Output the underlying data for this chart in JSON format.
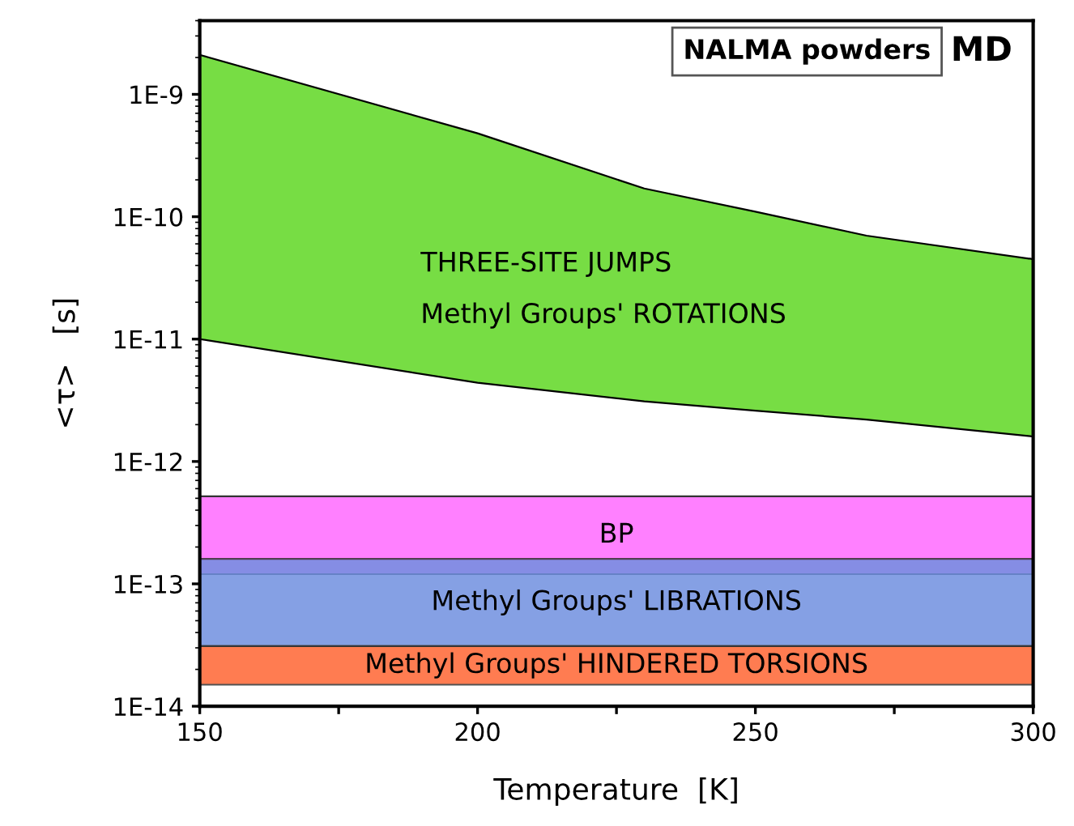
{
  "chart_data": {
    "type": "area",
    "xlabel": "Temperature  [K]",
    "ylabel": "<τ>   [s]",
    "x": [
      150,
      200,
      230,
      250,
      270,
      300
    ],
    "series": [
      {
        "color": "#ffffff",
        "values": [
          1e-11,
          4.4e-12,
          3.1e-12,
          2.6e-12,
          2.2e-12,
          1.6e-12
        ]
      },
      {
        "color": "#77dd44",
        "values": [
          2.09e-09,
          4.756e-10,
          1.669e-10,
          1.074e-10,
          6.78e-11,
          4.34e-11
        ]
      }
    ],
    "bands": [
      {
        "axis": "y",
        "from": 1.2e-13,
        "to": 5.2e-13,
        "label": "BP",
        "color": "#ff80ff"
      },
      {
        "axis": "y",
        "from": 3.1e-14,
        "to": 1.6e-13,
        "label": "Methyl Groups' LIBRATIONS",
        "color": "#7090e0"
      },
      {
        "axis": "y",
        "from": 1.5e-14,
        "to": 3.1e-14,
        "label": "Methyl Groups' HINDERED TORSIONS",
        "color": "#ff6633"
      }
    ],
    "annotations": [
      "THREE-SITE JUMPS",
      "Methyl Groups' ROTATIONS",
      "NALMA powders",
      "MD"
    ],
    "stacked": true,
    "log": "y",
    "xlim": [
      150,
      300
    ],
    "ylim": [
      1e-14,
      4e-09
    ],
    "xticks": [
      150,
      {
        "value": 175,
        "label": null
      },
      200,
      {
        "value": 225,
        "label": null
      },
      250,
      {
        "value": 275,
        "label": null
      },
      300
    ],
    "yticks": [
      {
        "value": 1e-14,
        "label": "1E-14"
      },
      {
        "value": 1e-13,
        "label": "1E-13"
      },
      {
        "value": 1e-12,
        "label": "1E-12"
      },
      {
        "value": 1e-11,
        "label": "1E-11"
      },
      {
        "value": 1e-10,
        "label": "1E-10"
      },
      {
        "value": 1e-09,
        "label": "1E-9"
      }
    ],
    "grid": false,
    "legend": false
  }
}
